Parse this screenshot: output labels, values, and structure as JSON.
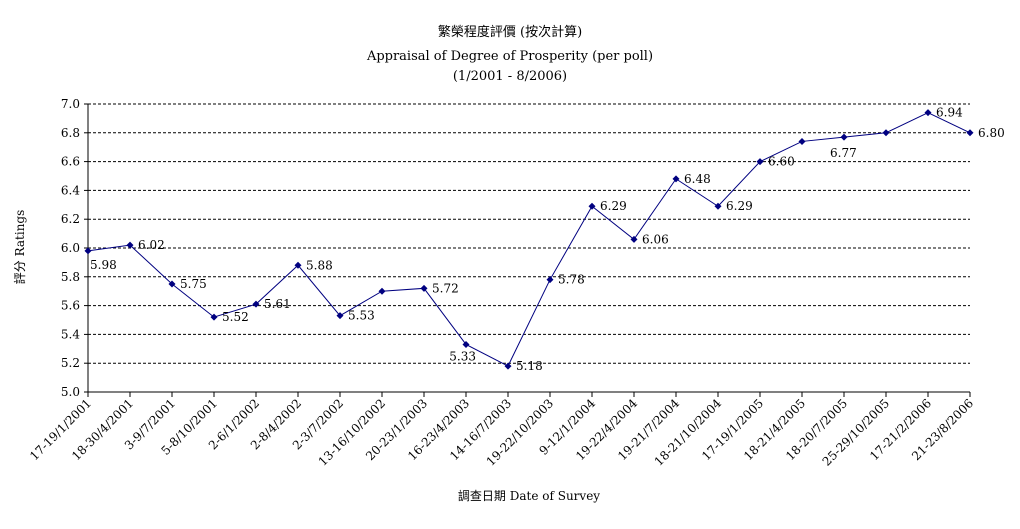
{
  "chart_data": {
    "type": "line",
    "title": "繁榮程度評價 (按次計算)",
    "subtitle": "Appraisal of Degree of Prosperity (per poll)",
    "period": "(1/2001 - 8/2006)",
    "xlabel": "調查日期 Date of Survey",
    "ylabel": "評分 Ratings",
    "ylim": [
      5.0,
      7.0
    ],
    "yticks": [
      "5.0",
      "5.2",
      "5.4",
      "5.6",
      "5.8",
      "6.0",
      "6.2",
      "6.4",
      "6.6",
      "6.8",
      "7.0"
    ],
    "grid": true,
    "legend": "none",
    "line_color": "#000080",
    "categories": [
      "17-19/1/2001",
      "18-30/4/2001",
      "3-9/7/2001",
      "5-8/10/2001",
      "2-6/1/2002",
      "2-8/4/2002",
      "2-3/7/2002",
      "13-16/10/2002",
      "20-23/1/2003",
      "16-23/4/2003",
      "14-16/7/2003",
      "19-22/10/2003",
      "9-12/1/2004",
      "19-22/4/2004",
      "19-21/7/2004",
      "18-21/10/2004",
      "17-19/1/2005",
      "18-21/4/2005",
      "18-20/7/2005",
      "25-29/10/2005",
      "17-21/2/2006",
      "21-23/8/2006"
    ],
    "values": [
      5.98,
      6.02,
      5.75,
      5.52,
      5.61,
      5.88,
      5.53,
      5.7,
      5.72,
      5.33,
      5.18,
      5.78,
      6.29,
      6.06,
      6.48,
      6.29,
      6.6,
      6.74,
      6.77,
      6.8,
      6.94,
      6.8
    ],
    "data_labels": [
      "5.98",
      "6.02",
      "5.75",
      "5.52",
      "5.61",
      "5.88",
      "5.53",
      null,
      "5.72",
      "5.33",
      "5.18",
      "5.78",
      "6.29",
      "6.06",
      "6.48",
      "6.29",
      "6.60",
      null,
      "6.77",
      null,
      "6.94",
      "6.80"
    ]
  }
}
